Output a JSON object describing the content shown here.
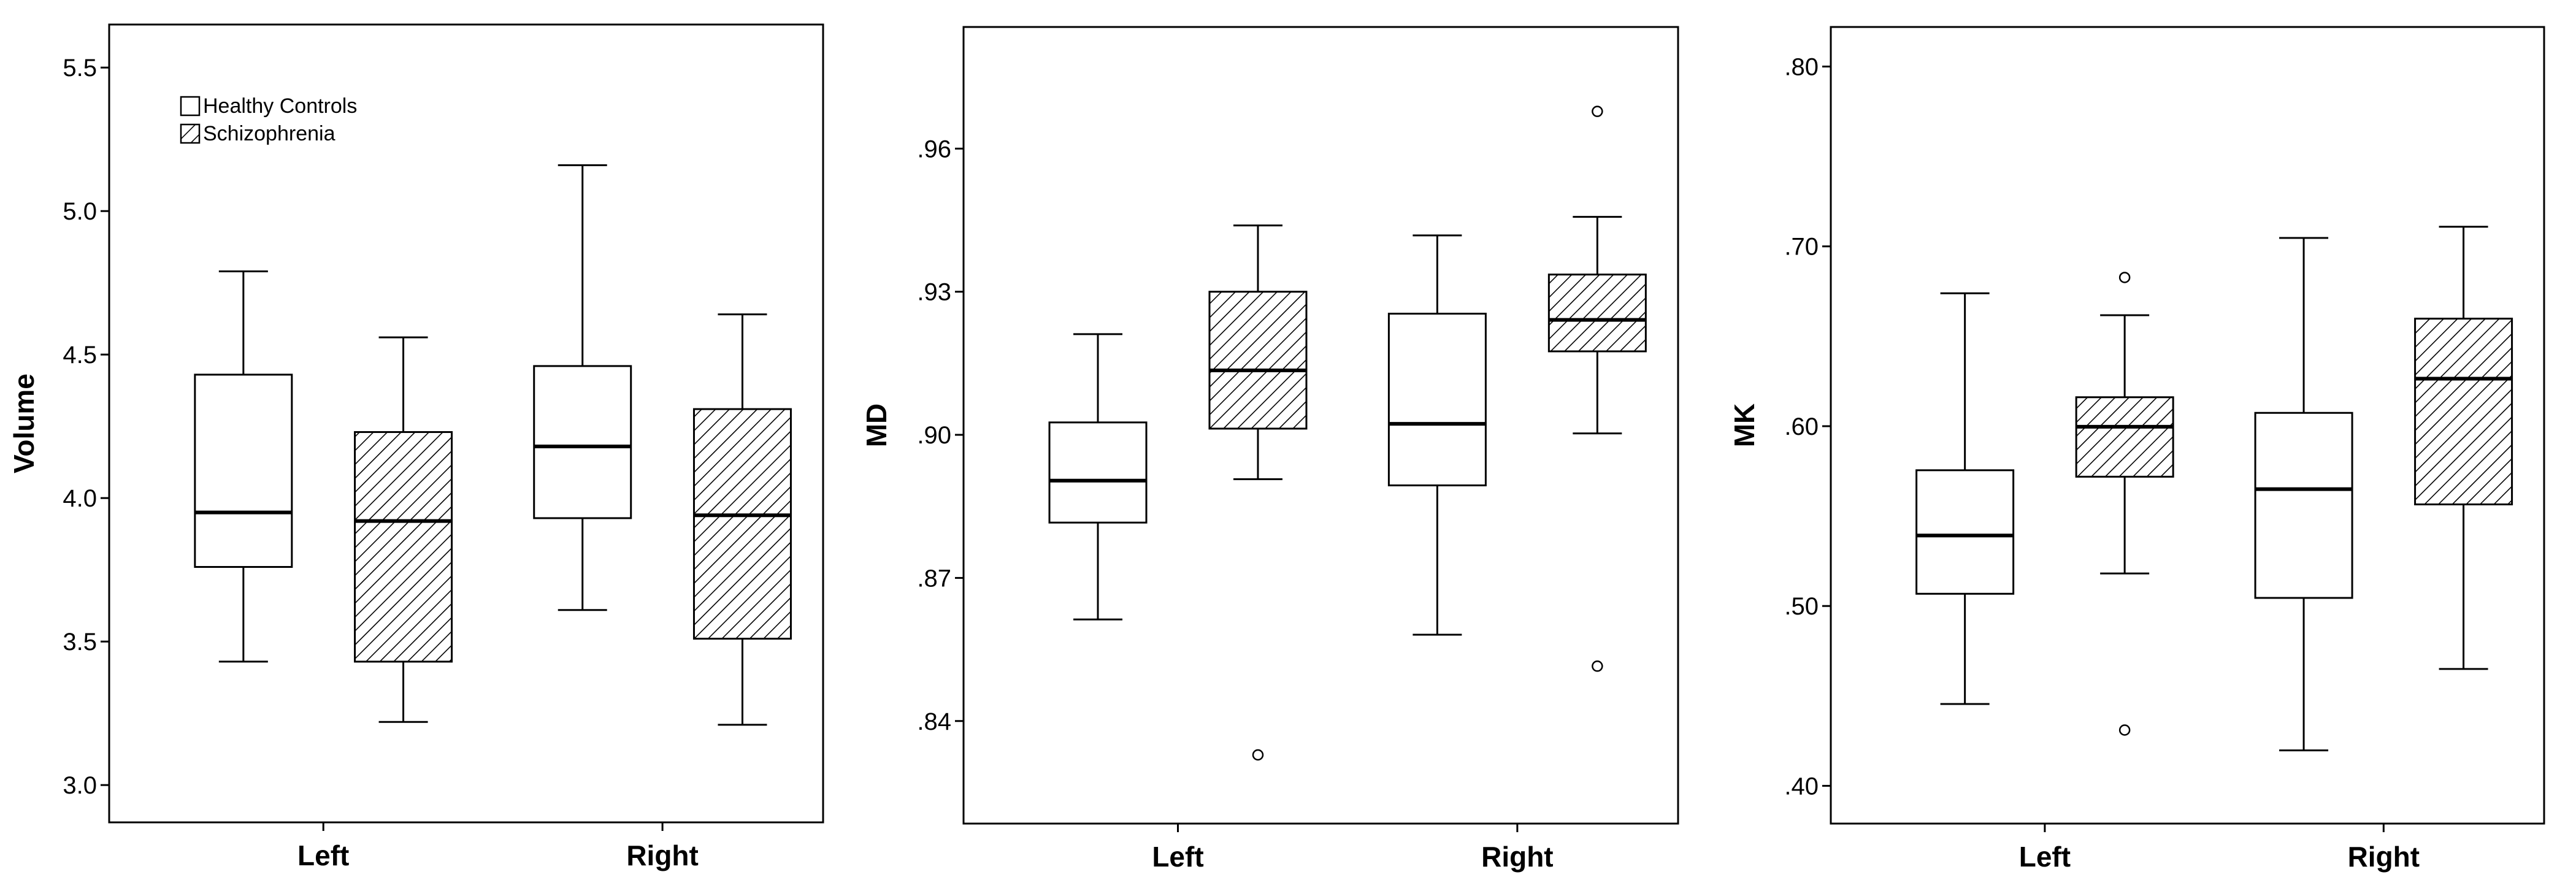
{
  "legend": {
    "items": [
      {
        "label": "Healthy Controls",
        "pattern": "none"
      },
      {
        "label": "Schizophrenia",
        "pattern": "hatch"
      }
    ]
  },
  "chart_data": [
    {
      "type": "box",
      "ylabel": "Volume",
      "categories": [
        "Left",
        "Right"
      ],
      "ylim": [
        2.87,
        5.65
      ],
      "yticks": [
        3.0,
        3.5,
        4.0,
        4.5,
        5.0,
        5.5
      ],
      "ytick_labels": [
        "3.0",
        "3.5",
        "4.0",
        "4.5",
        "5.0",
        "5.5"
      ],
      "series": [
        {
          "name": "Healthy Controls",
          "pattern": "none",
          "boxes": [
            {
              "min": 3.43,
              "q1": 3.76,
              "median": 3.95,
              "q3": 4.43,
              "max": 4.79,
              "outliers": []
            },
            {
              "min": 3.61,
              "q1": 3.93,
              "median": 4.18,
              "q3": 4.46,
              "max": 5.16,
              "outliers": []
            }
          ]
        },
        {
          "name": "Schizophrenia",
          "pattern": "hatch",
          "boxes": [
            {
              "min": 3.22,
              "q1": 3.43,
              "median": 3.92,
              "q3": 4.23,
              "max": 4.56,
              "outliers": []
            },
            {
              "min": 3.21,
              "q1": 3.51,
              "median": 3.94,
              "q3": 4.31,
              "max": 4.64,
              "outliers": []
            }
          ]
        }
      ]
    },
    {
      "type": "box",
      "ylabel": "MD",
      "categories": [
        "Left",
        "Right"
      ],
      "ylim": [
        0.8185,
        0.9855
      ],
      "yticks": [
        0.84,
        0.87,
        0.9,
        0.93,
        0.96
      ],
      "ytick_labels": [
        ".84",
        ".87",
        ".90",
        ".93",
        ".96"
      ],
      "series": [
        {
          "name": "Healthy Controls",
          "pattern": "none",
          "boxes": [
            {
              "min": 0.8613,
              "q1": 0.8816,
              "median": 0.8904,
              "q3": 0.9026,
              "max": 0.9211,
              "outliers": []
            },
            {
              "min": 0.8581,
              "q1": 0.8894,
              "median": 0.9023,
              "q3": 0.9254,
              "max": 0.9418,
              "outliers": []
            }
          ]
        },
        {
          "name": "Schizophrenia",
          "pattern": "hatch",
          "boxes": [
            {
              "min": 0.8907,
              "q1": 0.9013,
              "median": 0.9135,
              "q3": 0.93,
              "max": 0.9439,
              "outliers": [
                0.8329
              ]
            },
            {
              "min": 0.9003,
              "q1": 0.9175,
              "median": 0.9241,
              "q3": 0.9336,
              "max": 0.9457,
              "outliers": [
                0.9678,
                0.8515
              ]
            }
          ]
        }
      ]
    },
    {
      "type": "box",
      "ylabel": "MK",
      "categories": [
        "Left",
        "Right"
      ],
      "ylim": [
        0.379,
        0.822
      ],
      "yticks": [
        0.4,
        0.5,
        0.6,
        0.7,
        0.8
      ],
      "ytick_labels": [
        ".40",
        ".50",
        ".60",
        ".70",
        ".80"
      ],
      "series": [
        {
          "name": "Healthy Controls",
          "pattern": "none",
          "boxes": [
            {
              "min": 0.4455,
              "q1": 0.5068,
              "median": 0.5392,
              "q3": 0.5755,
              "max": 0.6739,
              "outliers": []
            },
            {
              "min": 0.4197,
              "q1": 0.5045,
              "median": 0.565,
              "q3": 0.6074,
              "max": 0.7047,
              "outliers": []
            }
          ]
        },
        {
          "name": "Schizophrenia",
          "pattern": "hatch",
          "boxes": [
            {
              "min": 0.5181,
              "q1": 0.5719,
              "median": 0.5997,
              "q3": 0.6161,
              "max": 0.6617,
              "outliers": [
                0.6827,
                0.431
              ]
            },
            {
              "min": 0.465,
              "q1": 0.5565,
              "median": 0.6264,
              "q3": 0.6598,
              "max": 0.7109,
              "outliers": []
            }
          ]
        }
      ]
    }
  ]
}
